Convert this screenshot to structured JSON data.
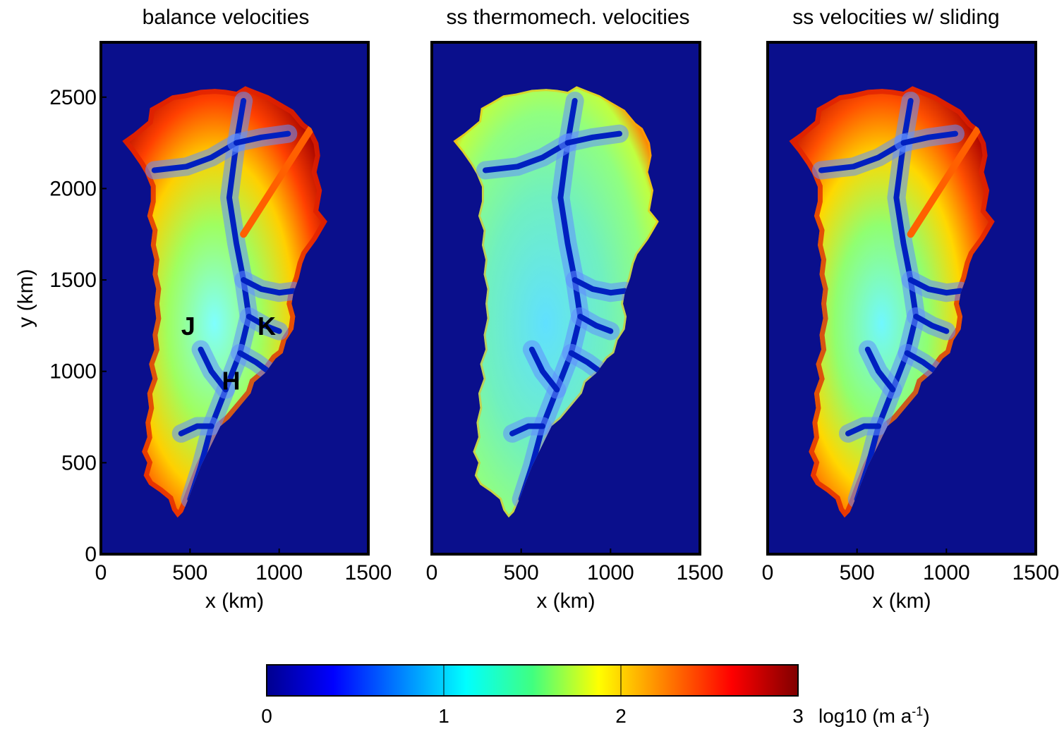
{
  "chart_data": [
    {
      "type": "heatmap",
      "title": "balance velocities",
      "xlabel": "x (km)",
      "ylabel": "y (km)",
      "xlim": [
        0,
        1500
      ],
      "ylim": [
        0,
        2800
      ],
      "xticks": [
        0,
        500,
        1000,
        1500
      ],
      "yticks": [
        0,
        500,
        1000,
        1500,
        2000,
        2500
      ],
      "annotations": [
        {
          "text": "J",
          "x": 490,
          "y": 1200
        },
        {
          "text": "K",
          "x": 930,
          "y": 1200
        },
        {
          "text": "H",
          "x": 730,
          "y": 900
        }
      ]
    },
    {
      "type": "heatmap",
      "title": "ss thermomech. velocities",
      "xlabel": "x (km)",
      "ylabel": "",
      "xlim": [
        0,
        1500
      ],
      "ylim": [
        0,
        2800
      ],
      "xticks": [
        0,
        500,
        1000,
        1500
      ],
      "yticks": [],
      "annotations": []
    },
    {
      "type": "heatmap",
      "title": "ss velocities w/ sliding",
      "xlabel": "x (km)",
      "ylabel": "",
      "xlim": [
        0,
        1500
      ],
      "ylim": [
        0,
        2800
      ],
      "xticks": [
        0,
        500,
        1000,
        1500
      ],
      "yticks": [],
      "annotations": []
    }
  ],
  "colorbar": {
    "min": 0,
    "max": 3,
    "ticks": [
      0,
      1,
      2,
      3
    ],
    "unit_label": "log10 (m a",
    "unit_sup": "-1",
    "unit_close": ")",
    "colormap": "jet"
  },
  "colors": {
    "background": "#0a0f8c",
    "low": "#00008f",
    "high": "#800000"
  }
}
